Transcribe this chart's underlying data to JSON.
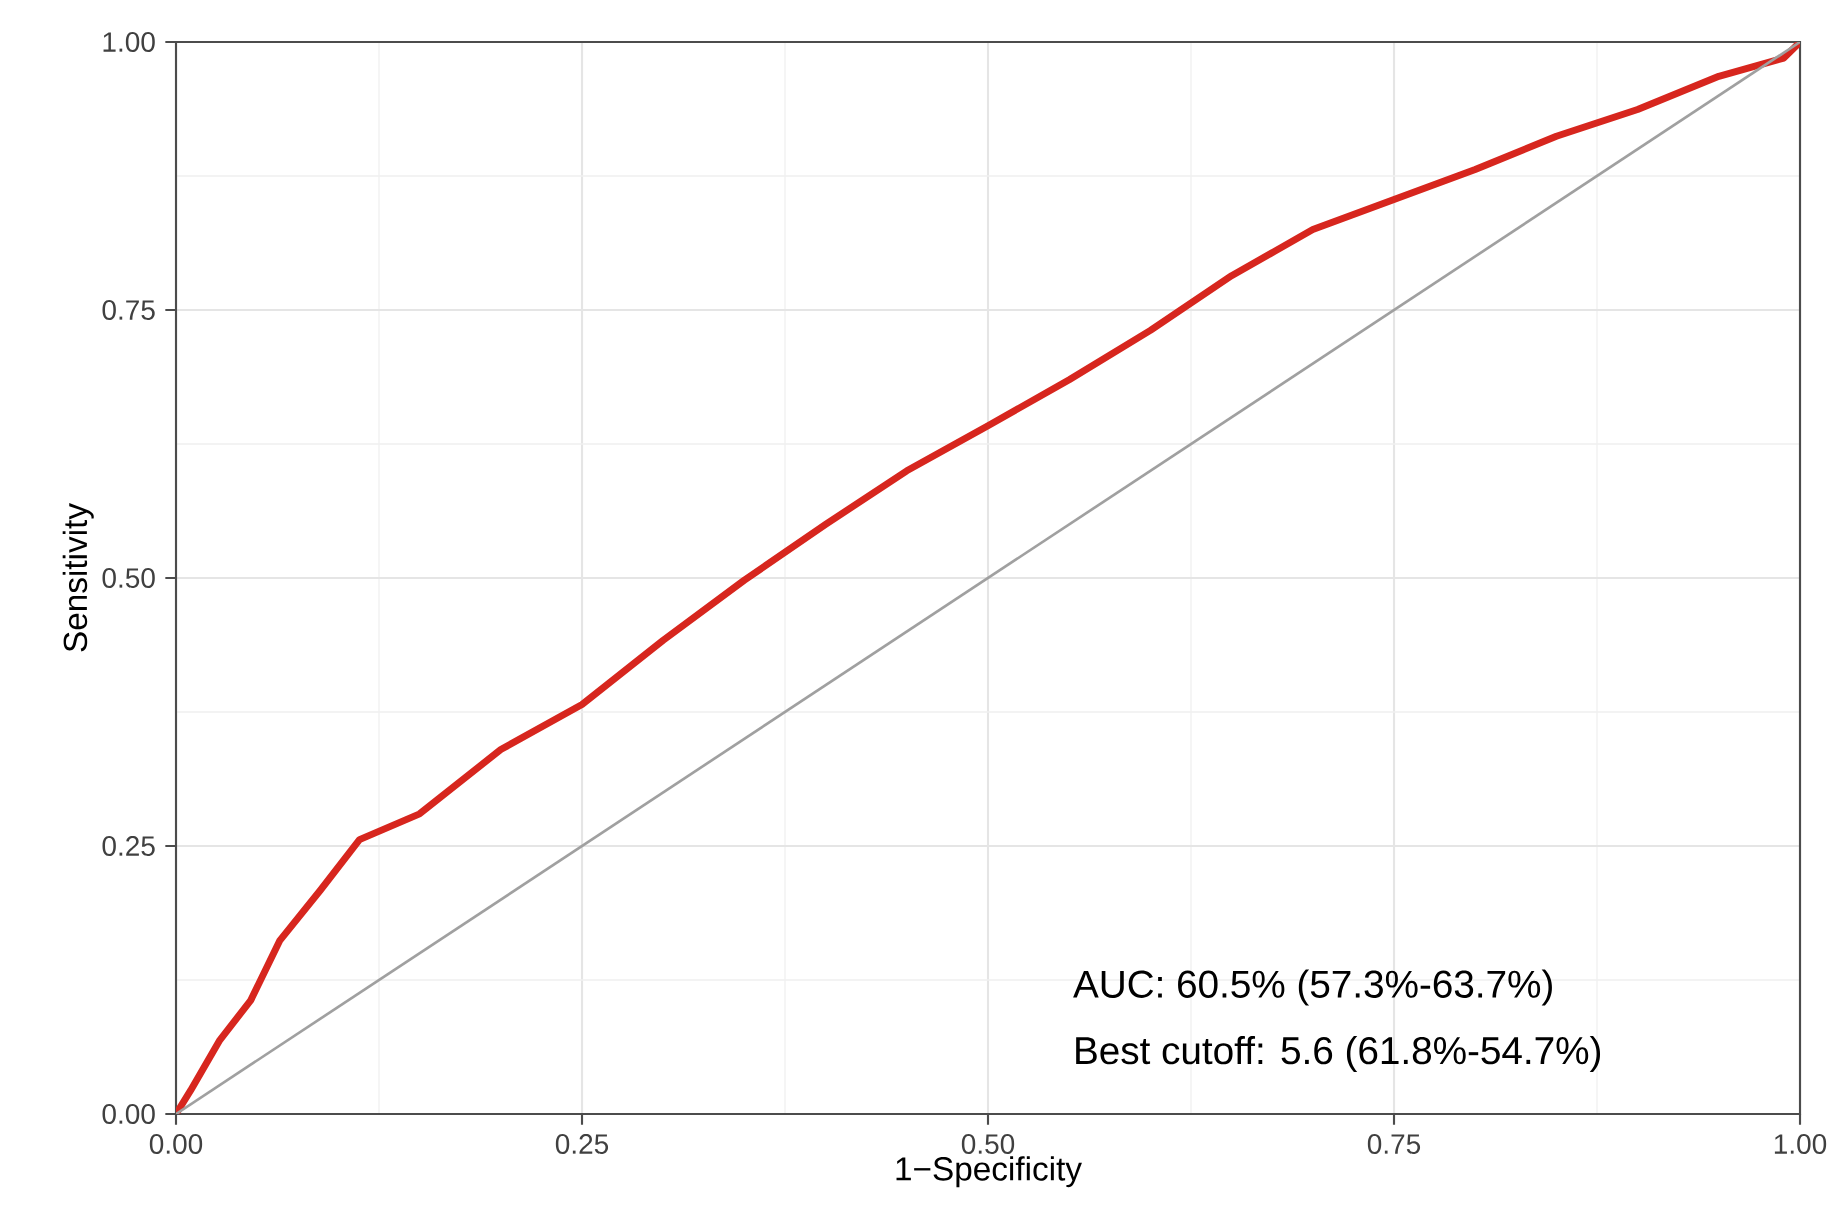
{
  "chart_data": {
    "type": "line",
    "xlabel": "1−Specificity",
    "ylabel": "Sensitivity",
    "x": [
      0,
      0.009,
      0.027,
      0.046,
      0.064,
      0.089,
      0.113,
      0.15,
      0.2,
      0.25,
      0.3,
      0.35,
      0.4,
      0.45,
      0.5,
      0.55,
      0.6,
      0.65,
      0.7,
      0.75,
      0.8,
      0.85,
      0.9,
      0.95,
      0.99,
      1
    ],
    "series": [
      {
        "color": "#d7261e",
        "values": [
          0,
          0.022,
          0.069,
          0.106,
          0.162,
          0.209,
          0.256,
          0.28,
          0.34,
          0.382,
          0.442,
          0.498,
          0.55,
          0.6,
          0.642,
          0.685,
          0.731,
          0.782,
          0.825,
          0.853,
          0.881,
          0.912,
          0.937,
          0.968,
          0.985,
          1
        ]
      },
      {
        "color": "#a0a0a0",
        "x": [
          0,
          1
        ],
        "values": [
          0,
          1
        ]
      }
    ],
    "xlim": [
      0,
      1
    ],
    "ylim": [
      0,
      1
    ],
    "xticks": [
      {
        "value": 0,
        "label": "0.00"
      },
      {
        "value": 0.25,
        "label": "0.25"
      },
      {
        "value": 0.5,
        "label": "0.50"
      },
      {
        "value": 0.75,
        "label": "0.75"
      },
      {
        "value": 1,
        "label": "1.00"
      }
    ],
    "yticks": [
      {
        "value": 0,
        "label": "0.00"
      },
      {
        "value": 0.25,
        "label": "0.25"
      },
      {
        "value": 0.5,
        "label": "0.50"
      },
      {
        "value": 0.75,
        "label": "0.75"
      },
      {
        "value": 1,
        "label": "1.00"
      }
    ],
    "grid": true,
    "annotations": [
      "AUC: 60.5% (57.3%-63.7%)",
      "Best cutoff: 5.6 (61.8%-54.7%)"
    ]
  }
}
